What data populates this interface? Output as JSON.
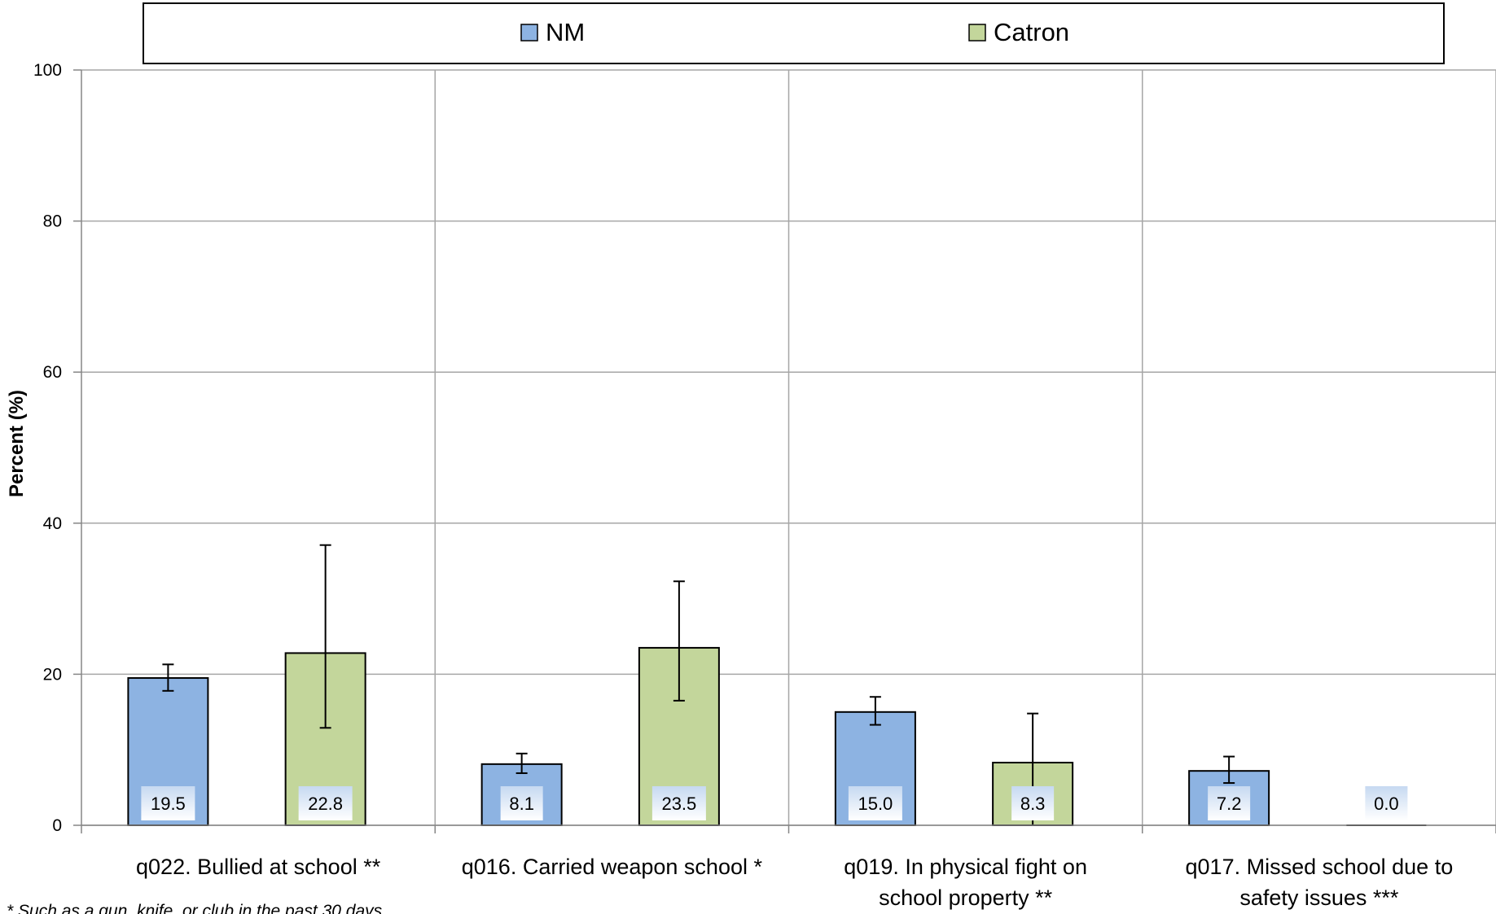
{
  "chart_data": {
    "type": "bar",
    "ylabel": "Percent (%)",
    "ylim": [
      0,
      100
    ],
    "yticks": [
      0,
      20,
      40,
      60,
      80,
      100
    ],
    "grid": true,
    "legend_position": "top",
    "categories": [
      "q022. Bullied at school **",
      "q016. Carried weapon school *",
      "q019. In physical fight on school property **",
      "q017. Missed school due to safety issues ***"
    ],
    "series": [
      {
        "name": "NM",
        "color": "#8db3e2",
        "values": [
          19.5,
          8.1,
          15.0,
          7.2
        ],
        "labels": [
          "19.5",
          "8.1",
          "15.0",
          "7.2"
        ],
        "ci_low": [
          17.8,
          6.9,
          13.3,
          5.6
        ],
        "ci_high": [
          21.3,
          9.5,
          17.0,
          9.1
        ]
      },
      {
        "name": "Catron",
        "color": "#c3d69b",
        "values": [
          22.8,
          23.5,
          8.3,
          0.0
        ],
        "labels": [
          "22.8",
          "23.5",
          "8.3",
          "0.0"
        ],
        "ci_low": [
          12.9,
          16.5,
          0.0,
          0.0
        ],
        "ci_high": [
          37.1,
          32.3,
          14.8,
          0.0
        ]
      }
    ],
    "footnote": "* Such as a gun, knife, or club in the past 30 days"
  }
}
